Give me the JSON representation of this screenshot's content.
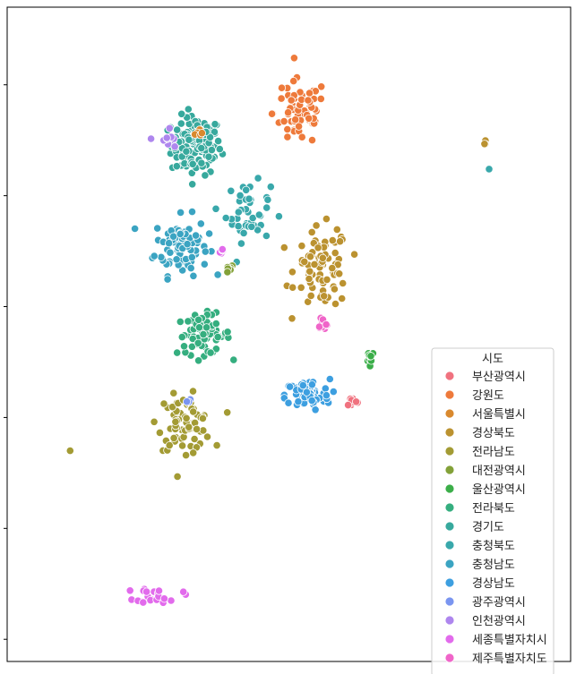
{
  "chart_data": {
    "type": "scatter",
    "title": "",
    "xlabel": "",
    "ylabel": "",
    "xlim": [
      124.4,
      132.0
    ],
    "ylim": [
      32.8,
      38.7
    ],
    "grid": false,
    "legend": {
      "title": "시도",
      "placement": "bottom-right",
      "entries": [
        {
          "name": "부산광역시",
          "color": "#f0727f"
        },
        {
          "name": "강원도",
          "color": "#ee7a3b"
        },
        {
          "name": "서울특별시",
          "color": "#d9892e"
        },
        {
          "name": "경상북도",
          "color": "#bb9230"
        },
        {
          "name": "전라남도",
          "color": "#a39b34"
        },
        {
          "name": "대전광역시",
          "color": "#83a138"
        },
        {
          "name": "울산광역시",
          "color": "#3bae49"
        },
        {
          "name": "전라북도",
          "color": "#35ae7f"
        },
        {
          "name": "경기도",
          "color": "#37a99d"
        },
        {
          "name": "충청북도",
          "color": "#39a8ab"
        },
        {
          "name": "충청남도",
          "color": "#3ba4c2"
        },
        {
          "name": "경상남도",
          "color": "#3d9fe0"
        },
        {
          "name": "광주광역시",
          "color": "#7a95f0"
        },
        {
          "name": "인천광역시",
          "color": "#ae86ee"
        },
        {
          "name": "세종특별자치시",
          "color": "#e26bec"
        },
        {
          "name": "제주특별자치도",
          "color": "#f065c9"
        }
      ]
    },
    "series": [
      {
        "name": "경기도",
        "color": "#37a99d",
        "clusters": [
          {
            "x": 126.95,
            "y": 37.45,
            "sx": 0.28,
            "sy": 0.22,
            "n": 130
          }
        ]
      },
      {
        "name": "충청남도",
        "color": "#3ba4c2",
        "clusters": [
          {
            "x": 126.75,
            "y": 36.55,
            "sx": 0.3,
            "sy": 0.22,
            "n": 90
          }
        ]
      },
      {
        "name": "충청북도",
        "color": "#39a8ab",
        "clusters": [
          {
            "x": 127.65,
            "y": 36.85,
            "sx": 0.25,
            "sy": 0.22,
            "n": 45
          },
          {
            "x": 130.9,
            "y": 37.24,
            "sx": 0.0,
            "sy": 0.0,
            "n": 1
          }
        ]
      },
      {
        "name": "전라북도",
        "color": "#35ae7f",
        "clusters": [
          {
            "x": 127.05,
            "y": 35.75,
            "sx": 0.3,
            "sy": 0.15,
            "n": 70
          }
        ]
      },
      {
        "name": "강원도",
        "color": "#ee7a3b",
        "clusters": [
          {
            "x": 128.35,
            "y": 37.75,
            "sx": 0.3,
            "sy": 0.25,
            "n": 70
          }
        ]
      },
      {
        "name": "경상북도",
        "color": "#bb9230",
        "clusters": [
          {
            "x": 128.65,
            "y": 36.35,
            "sx": 0.3,
            "sy": 0.3,
            "n": 80
          },
          {
            "x": 130.85,
            "y": 37.48,
            "sx": 0.02,
            "sy": 0.02,
            "n": 3
          }
        ]
      },
      {
        "name": "전라남도",
        "color": "#a39b34",
        "clusters": [
          {
            "x": 126.8,
            "y": 34.95,
            "sx": 0.3,
            "sy": 0.2,
            "n": 75
          },
          {
            "x": 125.25,
            "y": 34.7,
            "sx": 0.0,
            "sy": 0.0,
            "n": 1
          }
        ]
      },
      {
        "name": "경상남도",
        "color": "#3d9fe0",
        "clusters": [
          {
            "x": 128.45,
            "y": 35.2,
            "sx": 0.25,
            "sy": 0.12,
            "n": 75
          }
        ]
      },
      {
        "name": "부산광역시",
        "color": "#f0727f",
        "clusters": [
          {
            "x": 129.05,
            "y": 35.15,
            "sx": 0.06,
            "sy": 0.04,
            "n": 12
          }
        ]
      },
      {
        "name": "울산광역시",
        "color": "#3bae49",
        "clusters": [
          {
            "x": 129.3,
            "y": 35.55,
            "sx": 0.05,
            "sy": 0.05,
            "n": 14
          }
        ]
      },
      {
        "name": "대전광역시",
        "color": "#83a138",
        "clusters": [
          {
            "x": 127.4,
            "y": 36.35,
            "sx": 0.04,
            "sy": 0.04,
            "n": 6
          }
        ]
      },
      {
        "name": "서울특별시",
        "color": "#d9892e",
        "clusters": [
          {
            "x": 127.0,
            "y": 37.55,
            "sx": 0.06,
            "sy": 0.04,
            "n": 10
          }
        ]
      },
      {
        "name": "인천광역시",
        "color": "#ae86ee",
        "clusters": [
          {
            "x": 126.55,
            "y": 37.5,
            "sx": 0.12,
            "sy": 0.1,
            "n": 10
          }
        ]
      },
      {
        "name": "광주광역시",
        "color": "#7a95f0",
        "clusters": [
          {
            "x": 126.85,
            "y": 35.15,
            "sx": 0.02,
            "sy": 0.02,
            "n": 3
          }
        ]
      },
      {
        "name": "세종특별자치시",
        "color": "#e26bec",
        "clusters": [
          {
            "x": 127.28,
            "y": 36.5,
            "sx": 0.04,
            "sy": 0.03,
            "n": 5
          },
          {
            "x": 126.45,
            "y": 33.4,
            "sx": 0.25,
            "sy": 0.06,
            "n": 25
          }
        ]
      },
      {
        "name": "제주특별자치도",
        "color": "#f065c9",
        "clusters": [
          {
            "x": 128.65,
            "y": 35.85,
            "sx": 0.06,
            "sy": 0.06,
            "n": 10
          }
        ]
      }
    ]
  }
}
